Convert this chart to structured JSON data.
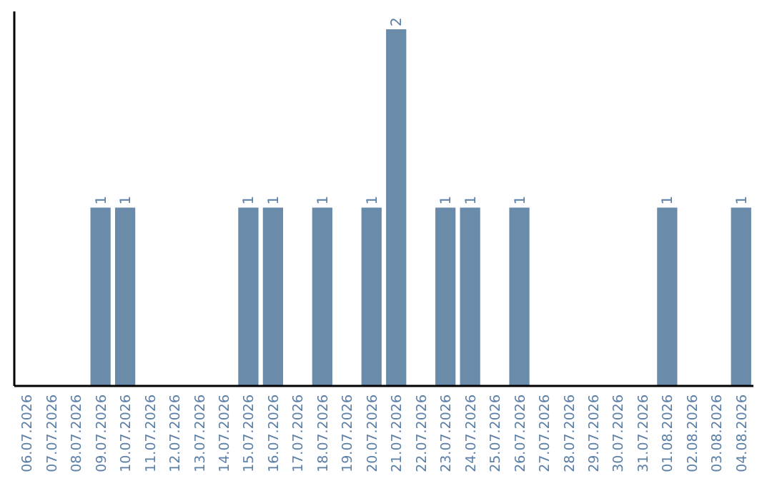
{
  "chart_data": {
    "type": "bar",
    "categories": [
      "06.07.2026",
      "07.07.2026",
      "08.07.2026",
      "09.07.2026",
      "10.07.2026",
      "11.07.2026",
      "12.07.2026",
      "13.07.2026",
      "14.07.2026",
      "15.07.2026",
      "16.07.2026",
      "17.07.2026",
      "18.07.2026",
      "19.07.2026",
      "20.07.2026",
      "21.07.2026",
      "22.07.2026",
      "23.07.2026",
      "24.07.2026",
      "25.07.2026",
      "26.07.2026",
      "27.07.2026",
      "28.07.2026",
      "29.07.2026",
      "30.07.2026",
      "31.07.2026",
      "01.08.2026",
      "02.08.2026",
      "03.08.2026",
      "04.08.2026"
    ],
    "values": [
      0,
      0,
      0,
      1,
      1,
      0,
      0,
      0,
      0,
      1,
      1,
      0,
      1,
      0,
      1,
      2,
      0,
      1,
      1,
      0,
      1,
      0,
      0,
      0,
      0,
      0,
      1,
      0,
      0,
      1
    ],
    "value_labels": [
      null,
      null,
      null,
      "1",
      "1",
      null,
      null,
      null,
      null,
      "1",
      "1",
      null,
      "1",
      null,
      "1",
      "2",
      null,
      "1",
      "1",
      null,
      "1",
      null,
      null,
      null,
      null,
      null,
      "1",
      null,
      null,
      "1"
    ],
    "color": "#6a8caa",
    "ylim": [
      0,
      2.1
    ],
    "tick_labels": "x"
  }
}
